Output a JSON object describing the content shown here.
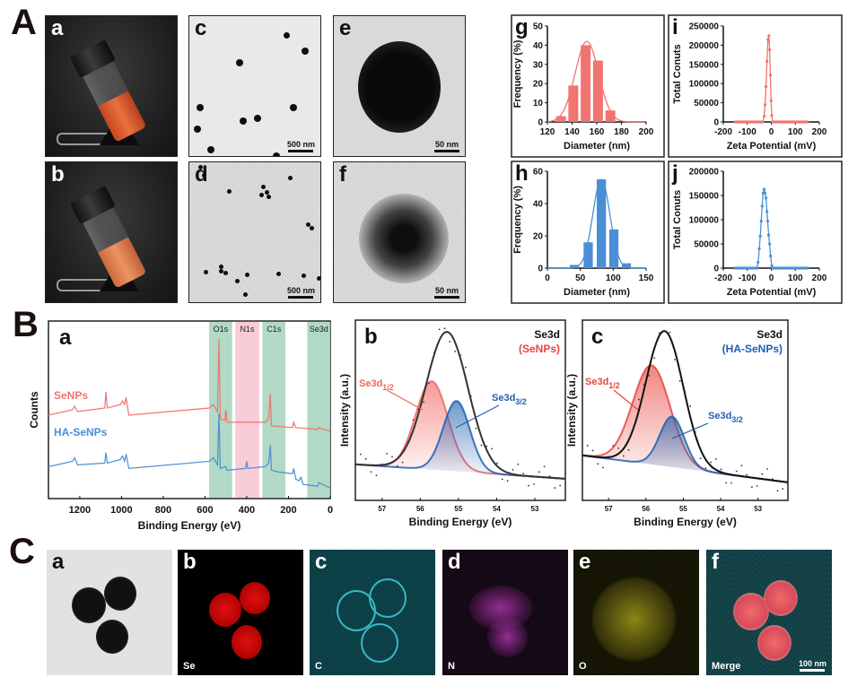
{
  "sections": {
    "A": "A",
    "B": "B",
    "C": "C"
  },
  "panelA": {
    "a": {
      "label": "a"
    },
    "b": {
      "label": "b"
    },
    "c": {
      "label": "c",
      "scale": "500 nm"
    },
    "d": {
      "label": "d",
      "scale": "500 nm"
    },
    "e": {
      "label": "e",
      "scale": "50 nm"
    },
    "f": {
      "label": "f",
      "scale": "50 nm"
    }
  },
  "panelC": {
    "a": {
      "label": "a"
    },
    "b": {
      "label": "b",
      "element": "Se"
    },
    "c": {
      "label": "c",
      "element": "C"
    },
    "d": {
      "label": "d",
      "element": "N"
    },
    "e": {
      "label": "e",
      "element": "O"
    },
    "f": {
      "label": "f",
      "element": "Merge",
      "scale": "100 nm"
    }
  },
  "colors": {
    "red": "#f07470",
    "blue": "#4a8fd6",
    "green_band": "#a9d5bf",
    "pink_band": "#f6c6d3",
    "dark_red": "#e8453f",
    "dark_blue": "#1f5fb0"
  },
  "chart_data": [
    {
      "id": "g",
      "label": "g",
      "type": "bar",
      "xlabel": "Diameter (nm)",
      "ylabel": "Frequency (%)",
      "xlim": [
        120,
        200
      ],
      "ylim": [
        0,
        50
      ],
      "xticks": [
        120,
        140,
        160,
        180,
        200
      ],
      "yticks": [
        0,
        10,
        20,
        30,
        40,
        50
      ],
      "x": [
        131,
        141,
        151,
        161,
        171
      ],
      "values": [
        3,
        19,
        40,
        32,
        6
      ],
      "bin_width": 8,
      "fit": {
        "type": "gaussian",
        "mean": 152,
        "peak": 42,
        "sd": 9.5
      },
      "color": "#f07470"
    },
    {
      "id": "h",
      "label": "h",
      "type": "bar",
      "xlabel": "Diameter (nm)",
      "ylabel": "Frequency (%)",
      "xlim": [
        0,
        150
      ],
      "ylim": [
        0,
        60
      ],
      "xticks": [
        0,
        50,
        100,
        150
      ],
      "yticks": [
        0,
        20,
        40,
        60
      ],
      "x": [
        41,
        62,
        82,
        101,
        120
      ],
      "values": [
        2,
        16,
        55,
        24,
        3
      ],
      "bin_width": 14,
      "fit": {
        "type": "gaussian",
        "mean": 82,
        "peak": 55,
        "sd": 13
      },
      "color": "#4a8fd6"
    },
    {
      "id": "i",
      "label": "i",
      "type": "line",
      "xlabel": "Zeta Potential (mV)",
      "ylabel": "Total Conuts",
      "xlim": [
        -200,
        200
      ],
      "ylim": [
        0,
        250000
      ],
      "xticks": [
        -200,
        -100,
        0,
        100,
        200
      ],
      "yticks": [
        0,
        50000,
        100000,
        150000,
        200000,
        250000
      ],
      "baseline_range": [
        -150,
        150
      ],
      "points": [
        [
          -30,
          15000
        ],
        [
          -26,
          45000
        ],
        [
          -22,
          92000
        ],
        [
          -18,
          158000
        ],
        [
          -14,
          215000
        ],
        [
          -10,
          225000
        ],
        [
          -7,
          188000
        ],
        [
          -4,
          122000
        ],
        [
          -1,
          55000
        ],
        [
          2,
          17000
        ]
      ],
      "color": "#f07470"
    },
    {
      "id": "j",
      "label": "j",
      "type": "line",
      "xlabel": "Zeta Potential (mV)",
      "ylabel": "Total Conuts",
      "xlim": [
        -200,
        200
      ],
      "ylim": [
        0,
        200000
      ],
      "xticks": [
        -200,
        -100,
        0,
        100,
        200
      ],
      "yticks": [
        0,
        50000,
        100000,
        150000,
        200000
      ],
      "baseline_range": [
        -150,
        150
      ],
      "points": [
        [
          -55,
          12000
        ],
        [
          -50,
          40000
        ],
        [
          -46,
          66000
        ],
        [
          -42,
          97000
        ],
        [
          -38,
          128000
        ],
        [
          -34,
          155000
        ],
        [
          -30,
          163000
        ],
        [
          -26,
          155000
        ],
        [
          -22,
          145000
        ],
        [
          -18,
          117000
        ],
        [
          -15,
          97000
        ],
        [
          -11,
          68000
        ],
        [
          -7,
          50000
        ],
        [
          -3,
          25000
        ],
        [
          2,
          5000
        ]
      ],
      "color": "#4a8fd6"
    },
    {
      "id": "Ba",
      "label": "a",
      "type": "line",
      "xlabel": "Binding Energy (eV)",
      "ylabel": "Counts",
      "xlim": [
        1350,
        0
      ],
      "ylim": [
        0,
        1
      ],
      "xticks": [
        1200,
        1000,
        800,
        600,
        400,
        200,
        0
      ],
      "bands": [
        {
          "name": "O1s",
          "range": [
            470,
            580
          ],
          "color": "#a9d5bf"
        },
        {
          "name": "N1s",
          "range": [
            340,
            455
          ],
          "color": "#f6c6d3"
        },
        {
          "name": "C1s",
          "range": [
            215,
            325
          ],
          "color": "#a9d5bf"
        },
        {
          "name": "Se3d",
          "range": [
            0,
            110
          ],
          "color": "#a9d5bf"
        }
      ],
      "series": [
        {
          "name": "SeNPs",
          "color": "#f07470",
          "points": [
            [
              1350,
              0.47
            ],
            [
              1235,
              0.5
            ],
            [
              1225,
              0.52
            ],
            [
              1210,
              0.49
            ],
            [
              1080,
              0.51
            ],
            [
              1075,
              0.6
            ],
            [
              1068,
              0.51
            ],
            [
              1005,
              0.53
            ],
            [
              995,
              0.55
            ],
            [
              985,
              0.53
            ],
            [
              978,
              0.57
            ],
            [
              965,
              0.47
            ],
            [
              580,
              0.51
            ],
            [
              560,
              0.53
            ],
            [
              540,
              0.49
            ],
            [
              533,
              0.9
            ],
            [
              527,
              0.45
            ],
            [
              505,
              0.44
            ],
            [
              500,
              0.5
            ],
            [
              495,
              0.43
            ],
            [
              310,
              0.43
            ],
            [
              295,
              0.45
            ],
            [
              287,
              0.59
            ],
            [
              282,
              0.41
            ],
            [
              180,
              0.4
            ],
            [
              175,
              0.43
            ],
            [
              165,
              0.4
            ],
            [
              60,
              0.39
            ],
            [
              55,
              0.4
            ],
            [
              30,
              0.39
            ],
            [
              0,
              0.38
            ]
          ]
        },
        {
          "name": "HA-SeNPs",
          "color": "#4a8fd6",
          "points": [
            [
              1350,
              0.18
            ],
            [
              1235,
              0.21
            ],
            [
              1225,
              0.23
            ],
            [
              1210,
              0.19
            ],
            [
              1080,
              0.2
            ],
            [
              1075,
              0.26
            ],
            [
              1068,
              0.2
            ],
            [
              1005,
              0.22
            ],
            [
              995,
              0.24
            ],
            [
              985,
              0.21
            ],
            [
              978,
              0.25
            ],
            [
              965,
              0.17
            ],
            [
              580,
              0.21
            ],
            [
              560,
              0.23
            ],
            [
              540,
              0.19
            ],
            [
              533,
              0.48
            ],
            [
              527,
              0.17
            ],
            [
              500,
              0.18
            ],
            [
              495,
              0.16
            ],
            [
              405,
              0.17
            ],
            [
              400,
              0.21
            ],
            [
              395,
              0.17
            ],
            [
              310,
              0.18
            ],
            [
              295,
              0.2
            ],
            [
              287,
              0.3
            ],
            [
              282,
              0.16
            ],
            [
              250,
              0.15
            ],
            [
              180,
              0.14
            ],
            [
              175,
              0.17
            ],
            [
              165,
              0.11
            ],
            [
              150,
              0.1
            ],
            [
              140,
              0.12
            ],
            [
              130,
              0.08
            ],
            [
              60,
              0.07
            ],
            [
              55,
              0.09
            ],
            [
              0,
              0.06
            ]
          ]
        }
      ]
    },
    {
      "id": "Bb",
      "label": "b",
      "type": "line",
      "xlabel": "Binding Energy (eV)",
      "ylabel": "Intensity (a.u.)",
      "title": "Se3d",
      "subtitle": "(SeNPs)",
      "subtitle_color": "#e8453f",
      "xlim": [
        57.7,
        52.2
      ],
      "ylim": [
        0,
        1
      ],
      "xticks": [
        57,
        56,
        55,
        54,
        53
      ],
      "baseline": [
        0.2,
        0.12
      ],
      "envelope": {
        "center": 55.3,
        "amp": 0.77,
        "sigma": 0.55,
        "color": "#333333"
      },
      "peaks": [
        {
          "name": "Se3d",
          "sub": "1/2",
          "center": 55.7,
          "amp": 0.49,
          "sigma": 0.42,
          "color": "#f06560"
        },
        {
          "name": "Se3d",
          "sub": "3/2",
          "center": 55.05,
          "amp": 0.39,
          "sigma": 0.35,
          "color": "#1f5fb0"
        }
      ]
    },
    {
      "id": "Bc",
      "label": "c",
      "type": "line",
      "xlabel": "Binding Energy (eV)",
      "ylabel": "Intensity (a.u.)",
      "title": "Se3d",
      "subtitle": "(HA-SeNPs)",
      "subtitle_color": "#1f5fb0",
      "xlim": [
        57.7,
        52.2
      ],
      "ylim": [
        0,
        1
      ],
      "xticks": [
        57,
        56,
        55,
        54,
        53
      ],
      "baseline": [
        0.25,
        0.1
      ],
      "envelope": {
        "center": 55.5,
        "amp": 0.75,
        "sigma": 0.5,
        "color": "#111111"
      },
      "peaks": [
        {
          "name": "Se3d",
          "sub": "1/2",
          "center": 55.85,
          "amp": 0.55,
          "sigma": 0.5,
          "color": "#e8453f"
        },
        {
          "name": "Se3d",
          "sub": "3/2",
          "center": 55.3,
          "amp": 0.28,
          "sigma": 0.33,
          "color": "#1f5fb0"
        }
      ]
    }
  ]
}
